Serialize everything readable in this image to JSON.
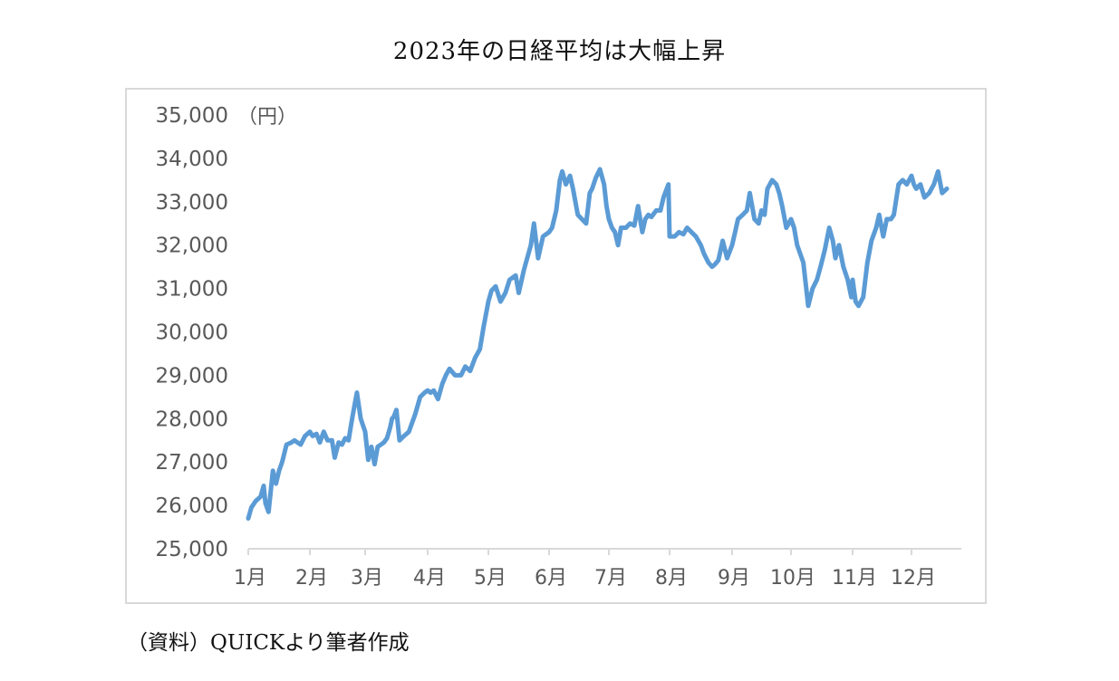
{
  "title": "2023年の日経平均は大幅上昇",
  "source": "（資料）QUICKより筆者作成",
  "style": {
    "line_color": "#5b9bd5",
    "axis_color": "#d9d9d9",
    "label_color": "#595959"
  },
  "chart_data": {
    "type": "line",
    "title": "2023年の日経平均は大幅上昇",
    "xlabel": "",
    "ylabel": "（円）",
    "unit_label": "（円）",
    "ylim": [
      25000,
      35000
    ],
    "yticks": [
      25000,
      26000,
      27000,
      28000,
      29000,
      30000,
      31000,
      32000,
      33000,
      34000,
      35000
    ],
    "ytick_labels": [
      "25,000",
      "26,000",
      "27,000",
      "28,000",
      "29,000",
      "30,000",
      "31,000",
      "32,000",
      "33,000",
      "34,000",
      "35,000"
    ],
    "categories": [
      "1月",
      "2月",
      "3月",
      "4月",
      "5月",
      "6月",
      "7月",
      "8月",
      "9月",
      "10月",
      "11月",
      "12月"
    ],
    "grid": false,
    "legend": null,
    "series": [
      {
        "name": "日経平均",
        "x_month": [
          0.0,
          0.05,
          0.12,
          0.2,
          0.25,
          0.28,
          0.33,
          0.4,
          0.45,
          0.5,
          0.55,
          0.62,
          0.7,
          0.75,
          0.85,
          0.92,
          1.0,
          1.05,
          1.12,
          1.18,
          1.25,
          1.32,
          1.4,
          1.45,
          1.52,
          1.58,
          1.64,
          1.7,
          1.75,
          1.8,
          1.85,
          1.92,
          2.0,
          2.05,
          2.1,
          2.15,
          2.2,
          2.25,
          2.3,
          2.35,
          2.4,
          2.43,
          2.46,
          2.5,
          2.55,
          2.62,
          2.7,
          2.8,
          2.88,
          2.95,
          3.0,
          3.05,
          3.1,
          3.17,
          3.24,
          3.3,
          3.36,
          3.45,
          3.55,
          3.62,
          3.7,
          3.78,
          3.86,
          3.92,
          4.0,
          4.05,
          4.12,
          4.2,
          4.28,
          4.35,
          4.45,
          4.5,
          4.58,
          4.62,
          4.7,
          4.75,
          4.82,
          4.9,
          5.0,
          5.05,
          5.12,
          5.18,
          5.22,
          5.28,
          5.35,
          5.4,
          5.48,
          5.55,
          5.62,
          5.68,
          5.72,
          5.78,
          5.85,
          5.92,
          5.96,
          6.0,
          6.05,
          6.1,
          6.15,
          6.2,
          6.28,
          6.35,
          6.42,
          6.48,
          6.55,
          6.6,
          6.65,
          6.7,
          6.78,
          6.85,
          6.9,
          6.98,
          7.0,
          7.08,
          7.15,
          7.22,
          7.28,
          7.35,
          7.42,
          7.5,
          7.55,
          7.62,
          7.68,
          7.72,
          7.78,
          7.85,
          7.92,
          8.0,
          8.05,
          8.1,
          8.18,
          8.25,
          8.3,
          8.38,
          8.45,
          8.5,
          8.55,
          8.6,
          8.68,
          8.75,
          8.8,
          8.85,
          8.92,
          9.0,
          9.05,
          9.1,
          9.15,
          9.2,
          9.28,
          9.35,
          9.42,
          9.48,
          9.55,
          9.62,
          9.68,
          9.72,
          9.78,
          9.85,
          9.92,
          9.98,
          10.0,
          10.05,
          10.1,
          10.18,
          10.25,
          10.32,
          10.4,
          10.45,
          10.52,
          10.58,
          10.65,
          10.7,
          10.78,
          10.85,
          10.92,
          11.0,
          11.04,
          11.08,
          11.15,
          11.22,
          11.3,
          11.38,
          11.45,
          11.52,
          11.6,
          11.68,
          11.75,
          11.78
        ],
        "values": [
          25700,
          25950,
          26100,
          26200,
          26450,
          26050,
          25850,
          26800,
          26500,
          26800,
          27000,
          27400,
          27450,
          27500,
          27400,
          27600,
          27700,
          27600,
          27650,
          27450,
          27700,
          27500,
          27500,
          27100,
          27450,
          27400,
          27550,
          27500,
          27900,
          28250,
          28600,
          28000,
          27700,
          27050,
          27350,
          26950,
          27350,
          27400,
          27450,
          27550,
          27800,
          28000,
          28050,
          28200,
          27500,
          27600,
          27700,
          28100,
          28500,
          28600,
          28650,
          28600,
          28650,
          28450,
          28800,
          29000,
          29150,
          29000,
          29000,
          29200,
          29100,
          29400,
          29600,
          30100,
          30700,
          30950,
          31050,
          30700,
          30900,
          31200,
          31300,
          30900,
          31400,
          31600,
          32000,
          32500,
          31700,
          32200,
          32300,
          32400,
          32800,
          33500,
          33700,
          33400,
          33600,
          33300,
          32700,
          32600,
          32500,
          33200,
          33300,
          33550,
          33750,
          33400,
          32900,
          32600,
          32400,
          32300,
          32000,
          32400,
          32400,
          32500,
          32450,
          32900,
          32300,
          32600,
          32700,
          32650,
          32800,
          32800,
          33100,
          33400,
          32200,
          32200,
          32300,
          32250,
          32400,
          32300,
          32200,
          32000,
          31800,
          31600,
          31500,
          31550,
          31650,
          32100,
          31700,
          32000,
          32300,
          32600,
          32700,
          32800,
          33200,
          32600,
          32500,
          32800,
          32700,
          33300,
          33500,
          33400,
          33200,
          32900,
          32400,
          32600,
          32400,
          32000,
          31800,
          31600,
          30600,
          31000,
          31200,
          31500,
          31900,
          32400,
          32100,
          31700,
          32000,
          31500,
          31200,
          30800,
          31200,
          30700,
          30600,
          30800,
          31600,
          32100,
          32400,
          32700,
          32200,
          32600,
          32600,
          32700,
          33400,
          33500,
          33400,
          33600,
          33400,
          33300,
          33400,
          33100,
          33200,
          33400,
          33700,
          33200,
          33300
        ]
      }
    ]
  }
}
